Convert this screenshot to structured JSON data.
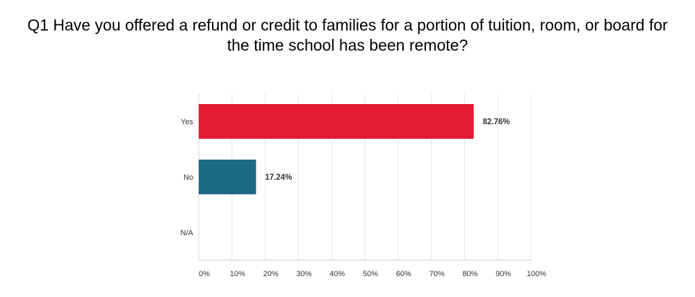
{
  "title_lines": [
    "Q1 Have you offered a refund or credit to families for a portion of tuition, room, or board for",
    "the time school has been remote?"
  ],
  "chart_data": {
    "type": "bar",
    "orientation": "horizontal",
    "title": "Q1 Have you offered a refund or credit to families for a portion of tuition, room, or board for the time school has been remote?",
    "categories": [
      "Yes",
      "No",
      "N/A"
    ],
    "values": [
      82.76,
      17.24,
      0
    ],
    "value_labels": [
      "82.76%",
      "17.24%",
      ""
    ],
    "colors": [
      "#e21a33",
      "#1d6a87",
      "#8dc63f"
    ],
    "xlim": [
      0,
      100
    ],
    "xticks": [
      "0%",
      "10%",
      "20%",
      "30%",
      "40%",
      "50%",
      "60%",
      "70%",
      "80%",
      "90%",
      "100%"
    ],
    "grid": true,
    "legend": "none"
  }
}
